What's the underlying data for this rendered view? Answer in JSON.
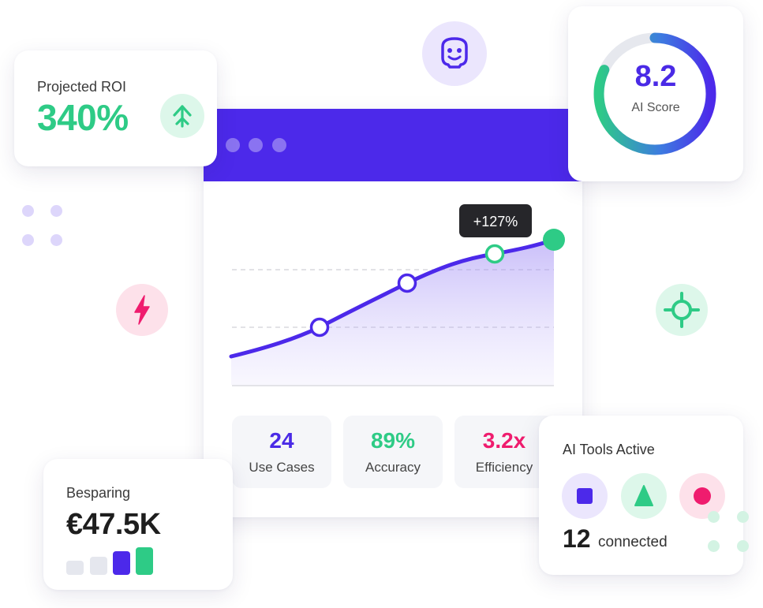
{
  "roi": {
    "label": "Projected ROI",
    "value": "340%",
    "icon": "arrow-up-icon"
  },
  "score": {
    "value": "8.2",
    "label": "AI Score",
    "max": 10
  },
  "window": {
    "tooltip": "+127%",
    "stats": [
      {
        "value": "24",
        "label": "Use Cases",
        "color": "#4a2ae6"
      },
      {
        "value": "89%",
        "label": "Accuracy",
        "color": "#2ecb86"
      },
      {
        "value": "3.2x",
        "label": "Efficiency",
        "color": "#ef1c6e"
      }
    ]
  },
  "saving": {
    "label": "Besparing",
    "value": "€47.5K"
  },
  "tools": {
    "label": "AI Tools Active",
    "count": "12",
    "count_label": "connected",
    "icons": [
      "square-icon",
      "triangle-icon",
      "circle-icon"
    ]
  },
  "floating_icons": [
    "robot-face-icon",
    "lightning-icon",
    "crosshair-icon"
  ],
  "colors": {
    "primary": "#4c29ea",
    "green": "#2ecb86",
    "pink": "#ef1c6e",
    "dark": "#1e1e1e"
  }
}
